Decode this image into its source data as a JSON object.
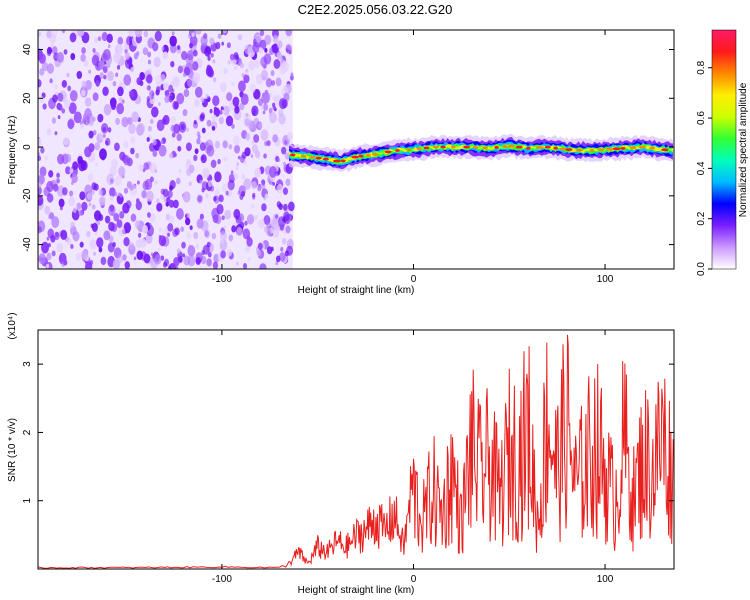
{
  "figure": {
    "title": "C2E2.2025.056.03.22.G20"
  },
  "chart_data": [
    {
      "type": "heatmap",
      "xlabel": "Height of straight line (km)",
      "ylabel": "Frequency (Hz)",
      "xlim": [
        -196,
        136
      ],
      "ylim": [
        -50,
        48
      ],
      "xticks": [
        -100,
        0,
        100
      ],
      "yticks": [
        -40,
        -20,
        0,
        20,
        40
      ],
      "colorbar": {
        "label": "Normalized spectral amplitude",
        "range": [
          0.0,
          0.95
        ],
        "ticks": [
          0.0,
          0.2,
          0.4,
          0.6,
          0.8
        ],
        "colors": [
          "#ffffff",
          "#cc99ff",
          "#7a1fff",
          "#0000ff",
          "#00bbff",
          "#00ffbb",
          "#33ff33",
          "#ccff00",
          "#ffee00",
          "#ff8800",
          "#ff1a1a",
          "#ff1a66"
        ]
      },
      "noise_region": {
        "x_range": [
          -196,
          -63
        ],
        "note_color": "#7a1fff"
      },
      "ridge": {
        "x": [
          -65,
          -55,
          -45,
          -38,
          -30,
          -20,
          -10,
          0,
          10,
          20,
          30,
          40,
          50,
          60,
          70,
          80,
          90,
          100,
          110,
          120,
          130,
          136
        ],
        "y": [
          -3,
          -4,
          -5,
          -6,
          -4,
          -3,
          -1.5,
          -1,
          0,
          0,
          0,
          -0.5,
          0.5,
          -0.5,
          0,
          -1,
          -1.5,
          -1,
          -0.5,
          0,
          -1,
          -1.5
        ]
      }
    },
    {
      "type": "line",
      "xlabel": "Height of straight line (km)",
      "ylabel": "SNR (10 * v/v)",
      "multiplier": "(x10⁴)",
      "xlim": [
        -196,
        136
      ],
      "ylim": [
        0,
        3.5
      ],
      "xticks": [
        -100,
        0,
        100
      ],
      "yticks": [
        1,
        2,
        3
      ],
      "series": [
        {
          "color": "#e8201e",
          "x": [
            -196,
            -150,
            -100,
            -70,
            -65,
            -60,
            -55,
            -50,
            -45,
            -40,
            -35,
            -30,
            -25,
            -20,
            -15,
            -10,
            -5,
            0,
            5,
            10,
            15,
            20,
            25,
            30,
            35,
            40,
            45,
            50,
            55,
            60,
            65,
            70,
            75,
            80,
            85,
            90,
            95,
            100,
            105,
            110,
            115,
            120,
            125,
            130,
            136
          ],
          "y": [
            0.02,
            0.02,
            0.03,
            0.02,
            0.1,
            0.3,
            0.1,
            0.4,
            0.3,
            0.5,
            0.4,
            0.6,
            0.7,
            0.9,
            0.7,
            1.0,
            0.4,
            1.7,
            1.1,
            1.8,
            1.2,
            2.2,
            1.0,
            2.7,
            2.1,
            2.4,
            1.6,
            2.6,
            2.5,
            3.1,
            1.0,
            3.5,
            2.2,
            3.3,
            1.8,
            2.4,
            2.8,
            2.2,
            1.5,
            2.9,
            1.6,
            2.5,
            2.2,
            3.0,
            1.9
          ]
        }
      ]
    }
  ]
}
